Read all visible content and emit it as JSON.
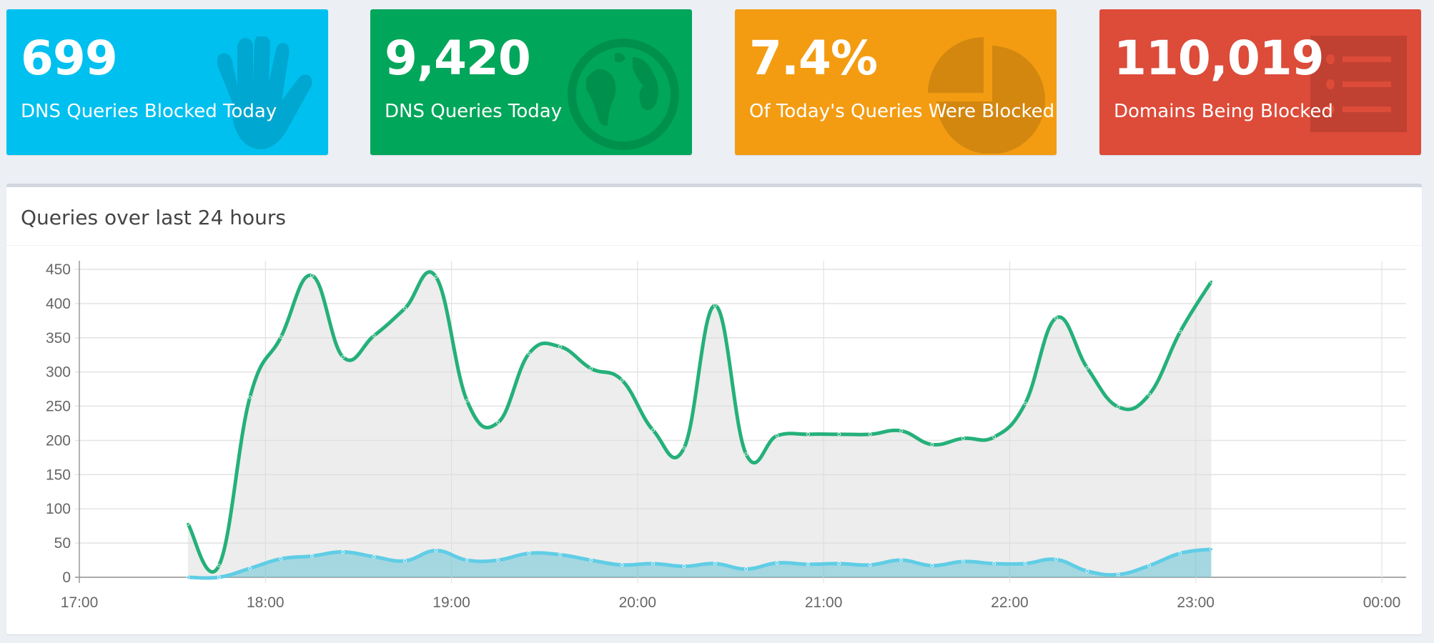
{
  "cards": [
    {
      "value": "699",
      "label": "DNS Queries Blocked Today",
      "color": "#00c0ef",
      "icon": "hand-icon"
    },
    {
      "value": "9,420",
      "label": "DNS Queries Today",
      "color": "#00a65a",
      "icon": "globe-icon"
    },
    {
      "value": "7.4%",
      "label": "Of Today's Queries Were Blocked",
      "color": "#f39c12",
      "icon": "pie-chart-icon"
    },
    {
      "value": "110,019",
      "label": "Domains Being Blocked",
      "color": "#dd4b39",
      "icon": "list-icon"
    }
  ],
  "chart_box": {
    "title": "Queries over last 24 hours"
  },
  "chart_data": {
    "type": "area",
    "title": "",
    "xlabel": "",
    "ylabel": "",
    "ylim": [
      0,
      450
    ],
    "yticks": [
      "0",
      "50",
      "100",
      "150",
      "200",
      "250",
      "300",
      "350",
      "400",
      "450"
    ],
    "xticks": [
      "17:00",
      "18:00",
      "19:00",
      "20:00",
      "21:00",
      "22:00",
      "23:00",
      "00:00"
    ],
    "grid": true,
    "x": [
      "17:35",
      "17:45",
      "17:55",
      "18:05",
      "18:15",
      "18:25",
      "18:35",
      "18:45",
      "18:55",
      "19:05",
      "19:15",
      "19:25",
      "19:35",
      "19:45",
      "19:55",
      "20:05",
      "20:15",
      "20:25",
      "20:35",
      "20:45",
      "20:55",
      "21:05",
      "21:15",
      "21:25",
      "21:35",
      "21:45",
      "21:55",
      "22:05",
      "22:15",
      "22:25",
      "22:35",
      "22:45",
      "22:55",
      "23:05"
    ],
    "series": [
      {
        "color": "#25b07a",
        "fill": "rgba(220,220,220,0.5)",
        "values": [
          78,
          17,
          263,
          351,
          441,
          322,
          353,
          393,
          439,
          258,
          226,
          327,
          337,
          305,
          288,
          215,
          189,
          397,
          180,
          207,
          209,
          209,
          209,
          214,
          194,
          203,
          205,
          254,
          379,
          306,
          249,
          267,
          359,
          432
        ]
      },
      {
        "color": "#60cde5",
        "fill": "rgba(0,166,200,0.3)",
        "values": [
          0,
          0,
          13,
          27,
          31,
          37,
          30,
          24,
          39,
          25,
          25,
          35,
          33,
          25,
          18,
          20,
          16,
          20,
          12,
          21,
          19,
          20,
          18,
          25,
          17,
          23,
          20,
          20,
          26,
          9,
          4,
          17,
          35,
          41
        ]
      }
    ]
  }
}
